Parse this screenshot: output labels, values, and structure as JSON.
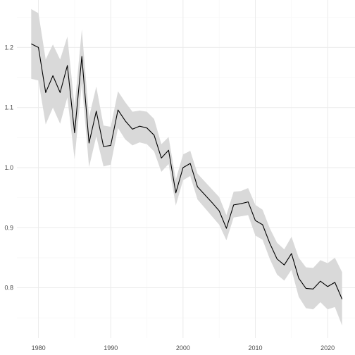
{
  "chart_data": {
    "type": "line",
    "title": "",
    "xlabel": "",
    "ylabel": "",
    "xlim": [
      1977.8,
      2023.2
    ],
    "ylim": [
      0.735,
      1.272
    ],
    "x_ticks": [
      1980,
      1990,
      2000,
      2010,
      2020
    ],
    "x_tick_labels": [
      "1980",
      "1990",
      "2000",
      "2010",
      "2020"
    ],
    "y_ticks": [
      0.8,
      0.9,
      1.0,
      1.1,
      1.2
    ],
    "y_tick_labels": [
      "0.8",
      "0.9",
      "1.0",
      "1.1",
      "1.2"
    ],
    "grid": true,
    "legend": "none",
    "colors": {
      "line": "#000000",
      "ribbon": "#d9d9d9",
      "grid_major": "#ebebeb",
      "grid_minor": "#f5f5f5",
      "background": "#ffffff",
      "tick_label": "#4d4d4d"
    },
    "series": [
      {
        "x": [
          1979,
          1980,
          1981,
          1982,
          1983,
          1984,
          1985,
          1986,
          1987,
          1988,
          1989,
          1990,
          1991,
          1992,
          1993,
          1994,
          1995,
          1996,
          1997,
          1998,
          1999,
          2000,
          2001,
          2002,
          2003,
          2004,
          2005,
          2006,
          2007,
          2008,
          2009,
          2010,
          2011,
          2012,
          2013,
          2014,
          2015,
          2016,
          2017,
          2018,
          2019,
          2020,
          2021,
          2022
        ],
        "y": [
          1.206,
          1.2,
          1.125,
          1.153,
          1.125,
          1.17,
          1.058,
          1.185,
          1.041,
          1.094,
          1.035,
          1.037,
          1.096,
          1.078,
          1.064,
          1.069,
          1.066,
          1.054,
          1.016,
          1.029,
          0.958,
          1.0,
          1.007,
          0.968,
          0.955,
          0.942,
          0.928,
          0.899,
          0.938,
          0.94,
          0.943,
          0.912,
          0.905,
          0.874,
          0.848,
          0.838,
          0.857,
          0.816,
          0.799,
          0.798,
          0.811,
          0.802,
          0.809,
          0.781
        ],
        "lower": [
          1.148,
          1.145,
          1.072,
          1.1,
          1.073,
          1.117,
          1.014,
          1.14,
          1.001,
          1.052,
          1.002,
          1.005,
          1.066,
          1.047,
          1.037,
          1.042,
          1.039,
          1.027,
          0.993,
          1.006,
          0.937,
          0.979,
          0.986,
          0.947,
          0.933,
          0.919,
          0.905,
          0.879,
          0.917,
          0.919,
          0.921,
          0.887,
          0.88,
          0.848,
          0.822,
          0.812,
          0.83,
          0.785,
          0.766,
          0.764,
          0.776,
          0.764,
          0.768,
          0.737
        ],
        "upper": [
          1.264,
          1.257,
          1.18,
          1.205,
          1.18,
          1.218,
          1.102,
          1.23,
          1.084,
          1.135,
          1.07,
          1.068,
          1.127,
          1.109,
          1.093,
          1.095,
          1.093,
          1.081,
          1.039,
          1.051,
          0.98,
          1.022,
          1.028,
          0.99,
          0.977,
          0.964,
          0.951,
          0.921,
          0.96,
          0.961,
          0.966,
          0.938,
          0.93,
          0.899,
          0.875,
          0.864,
          0.885,
          0.85,
          0.834,
          0.833,
          0.846,
          0.841,
          0.85,
          0.826
        ]
      }
    ]
  }
}
